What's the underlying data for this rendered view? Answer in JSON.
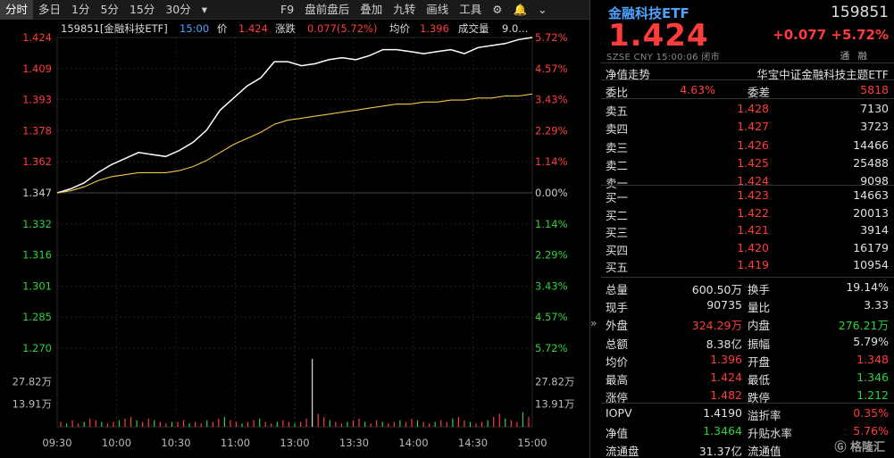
{
  "toolbar": {
    "items": [
      "分时",
      "多日",
      "1分",
      "5分",
      "15分",
      "30分",
      "▾",
      "F9",
      "盘前盘后",
      "叠加",
      "九转",
      "画线",
      "工具"
    ],
    "gear_icon": "gear-icon",
    "bell_icon": "bell-icon",
    "more_icon": "chevron-down-icon"
  },
  "chart_header": {
    "code_name": "159851[金融科技ETF]",
    "time": "15:00",
    "price_label": "价",
    "price": "1.424",
    "change_label": "涨跌",
    "change": "0.077(5.72%)",
    "avg_label": "均价",
    "avg": "1.396",
    "volume_label": "成交量",
    "volume": "9.0..."
  },
  "chart_data": {
    "type": "line",
    "y_ticks_left": [
      "1.424",
      "1.409",
      "1.393",
      "1.378",
      "1.362",
      "1.347",
      "1.332",
      "1.316",
      "1.301",
      "1.285",
      "1.270"
    ],
    "y_ticks_right": [
      "5.72%",
      "4.57%",
      "3.43%",
      "2.29%",
      "1.14%",
      "0.00%",
      "1.14%",
      "2.29%",
      "3.43%",
      "4.57%",
      "5.72%"
    ],
    "ylim": [
      1.27,
      1.424
    ],
    "pre_close": 1.347,
    "x_ticks": [
      "09:30",
      "10:00",
      "10:30",
      "11:00",
      "11:30/13:00",
      "13:30",
      "14:00",
      "14:30",
      "15:00"
    ],
    "x_ticks_display": [
      "09:30",
      "10:00",
      "10:30",
      "11:00",
      "13:00",
      "13:30",
      "14:00",
      "14:30",
      "15:00"
    ],
    "series": [
      {
        "values": [
          1.347,
          1.349,
          1.352,
          1.357,
          1.361,
          1.364,
          1.367,
          1.366,
          1.365,
          1.368,
          1.372,
          1.378,
          1.388,
          1.394,
          1.4,
          1.404,
          1.412,
          1.412,
          1.41,
          1.411,
          1.413,
          1.414,
          1.413,
          1.415,
          1.418,
          1.418,
          1.417,
          1.416,
          1.417,
          1.418,
          1.416,
          1.419,
          1.42,
          1.421,
          1.423,
          1.424
        ]
      },
      {
        "values": [
          1.347,
          1.348,
          1.35,
          1.353,
          1.355,
          1.356,
          1.357,
          1.357,
          1.357,
          1.358,
          1.36,
          1.363,
          1.367,
          1.371,
          1.374,
          1.377,
          1.381,
          1.383,
          1.384,
          1.385,
          1.386,
          1.387,
          1.388,
          1.389,
          1.39,
          1.391,
          1.391,
          1.392,
          1.392,
          1.393,
          1.393,
          1.394,
          1.394,
          1.395,
          1.395,
          1.396
        ]
      }
    ],
    "volume_ticks": [
      "27.82万",
      "13.91万"
    ],
    "volume_max": 41.73,
    "volumes": [
      3,
      2,
      4,
      2,
      3,
      5,
      4,
      3,
      2,
      3,
      4,
      5,
      6,
      4,
      3,
      5,
      4,
      3,
      2,
      3,
      3,
      4,
      2,
      3,
      2,
      4,
      3,
      5,
      6,
      4,
      3,
      2,
      3,
      4,
      5,
      3,
      2,
      3,
      4,
      3,
      2,
      3,
      5,
      41.7,
      8,
      6,
      4,
      3,
      2,
      3,
      4,
      5,
      3,
      2,
      4,
      3,
      2,
      3,
      4,
      3,
      5,
      4,
      3,
      2,
      3,
      4,
      3,
      5,
      6,
      4,
      3,
      2,
      3,
      4,
      6,
      8,
      5,
      4,
      3,
      9,
      6
    ]
  },
  "quote": {
    "name": "金融科技ETF",
    "code": "159851",
    "price": "1.424",
    "change": "+0.077",
    "change_pct": "+5.72%",
    "meta": "SZSE  CNY  15:00:06  闭市",
    "flags": "通 融"
  },
  "nav_row": {
    "left": "净值走势",
    "right": "华宝中证金融科技主题ETF"
  },
  "ratio": {
    "label": "委比",
    "value": "4.63%",
    "diff_label": "委差",
    "diff": "5818"
  },
  "sells": [
    {
      "label": "卖五",
      "price": "1.428",
      "vol": "7130"
    },
    {
      "label": "卖四",
      "price": "1.427",
      "vol": "3723"
    },
    {
      "label": "卖三",
      "price": "1.426",
      "vol": "14466"
    },
    {
      "label": "卖二",
      "price": "1.425",
      "vol": "25488"
    },
    {
      "label": "卖一",
      "price": "1.424",
      "vol": "9098"
    }
  ],
  "buys": [
    {
      "label": "买一",
      "price": "1.423",
      "vol": "14663"
    },
    {
      "label": "买二",
      "price": "1.422",
      "vol": "20013"
    },
    {
      "label": "买三",
      "price": "1.421",
      "vol": "3914"
    },
    {
      "label": "买四",
      "price": "1.420",
      "vol": "16179"
    },
    {
      "label": "买五",
      "price": "1.419",
      "vol": "10954"
    }
  ],
  "stats": [
    {
      "l1": "总量",
      "v1": "600.50万",
      "c1": "white",
      "l2": "换手",
      "v2": "19.14%",
      "c2": "white"
    },
    {
      "l1": "现手",
      "v1": "90735",
      "c1": "white",
      "l2": "量比",
      "v2": "3.33",
      "c2": "white"
    },
    {
      "l1": "外盘",
      "v1": "324.29万",
      "c1": "red",
      "l2": "内盘",
      "v2": "276.21万",
      "c2": "green"
    },
    {
      "l1": "总额",
      "v1": "8.38亿",
      "c1": "white",
      "l2": "振幅",
      "v2": "5.79%",
      "c2": "white"
    },
    {
      "l1": "均价",
      "v1": "1.396",
      "c1": "red",
      "l2": "开盘",
      "v2": "1.348",
      "c2": "red"
    },
    {
      "l1": "最高",
      "v1": "1.424",
      "c1": "red",
      "l2": "最低",
      "v2": "1.346",
      "c2": "green"
    },
    {
      "l1": "涨停",
      "v1": "1.482",
      "c1": "red",
      "l2": "跌停",
      "v2": "1.212",
      "c2": "green"
    }
  ],
  "stats2": [
    {
      "l1": "IOPV",
      "v1": "1.4190",
      "c1": "white",
      "l2": "溢折率",
      "v2": "0.35%",
      "c2": "red"
    },
    {
      "l1": "净值",
      "v1": "1.3464",
      "c1": "green",
      "l2": "升贴水率",
      "v2": "5.76%",
      "c2": "red"
    },
    {
      "l1": "流通盘",
      "v1": "31.37亿",
      "c1": "white",
      "l2": "流通值",
      "v2": "",
      "c2": "white"
    }
  ],
  "logo": "格隆汇",
  "colors": {
    "up": "#ff3c3c",
    "down": "#2bd23a",
    "price_line": "#ffffff",
    "avg_line": "#f5c542",
    "accent": "#4fa3ff"
  }
}
